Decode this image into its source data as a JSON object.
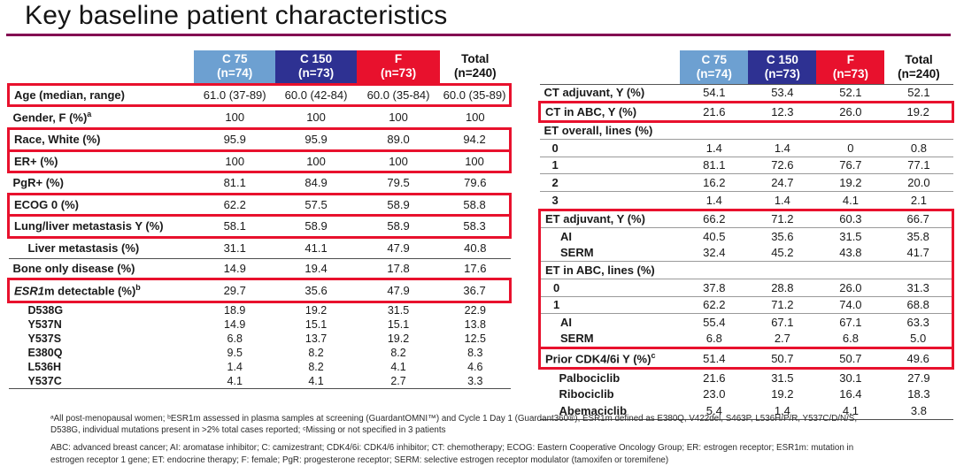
{
  "slide": {
    "title": "Key baseline patient characteristics",
    "accent_color": "#830051",
    "highlight_color": "#e8112d"
  },
  "columns": [
    {
      "label": "C 75",
      "n": "(n=74)",
      "bg": "#6da0d1",
      "fg": "#ffffff"
    },
    {
      "label": "C 150",
      "n": "(n=73)",
      "bg": "#2e3192",
      "fg": "#ffffff"
    },
    {
      "label": "F",
      "n": "(n=73)",
      "bg": "#e8112d",
      "fg": "#ffffff"
    },
    {
      "label": "Total",
      "n": "(n=240)",
      "bg": "",
      "fg": "#111111"
    }
  ],
  "left_table": {
    "rows": [
      {
        "label": "Age (median, range)",
        "box": "solo",
        "values": [
          "61.0 (37-89)",
          "60.0 (42-84)",
          "60.0 (35-84)",
          "60.0 (35-89)"
        ]
      },
      {
        "label": "Gender, F (%)",
        "sup": "a",
        "sep": "light",
        "values": [
          "100",
          "100",
          "100",
          "100"
        ]
      },
      {
        "label": "Race, White (%)",
        "box": "solo",
        "values": [
          "95.9",
          "95.9",
          "89.0",
          "94.2"
        ]
      },
      {
        "label": "ER+ (%)",
        "box": "solo",
        "values": [
          "100",
          "100",
          "100",
          "100"
        ]
      },
      {
        "label": "PgR+ (%)",
        "sep": "light",
        "values": [
          "81.1",
          "84.9",
          "79.5",
          "79.6"
        ]
      },
      {
        "label": "ECOG 0 (%)",
        "box": "solo",
        "values": [
          "62.2",
          "57.5",
          "58.9",
          "58.8"
        ]
      },
      {
        "label": "Lung/liver metastasis Y (%)",
        "box": "solo",
        "values": [
          "58.1",
          "58.9",
          "58.9",
          "58.3"
        ]
      },
      {
        "label": "Liver metastasis (%)",
        "indent": 2,
        "sep": "dark",
        "values": [
          "31.1",
          "41.1",
          "47.9",
          "40.8"
        ]
      },
      {
        "label": "Bone only disease (%)",
        "sep": "light",
        "values": [
          "14.9",
          "19.4",
          "17.8",
          "17.6"
        ]
      },
      {
        "italic_prefix": "ESR1",
        "label": "m detectable (%)",
        "sup": "b",
        "box": "solo",
        "values": [
          "29.7",
          "35.6",
          "47.9",
          "36.7"
        ]
      },
      {
        "label": "D538G",
        "indent": 2,
        "compact": true,
        "values": [
          "18.9",
          "19.2",
          "31.5",
          "22.9"
        ]
      },
      {
        "label": "Y537N",
        "indent": 2,
        "compact": true,
        "values": [
          "14.9",
          "15.1",
          "15.1",
          "13.8"
        ]
      },
      {
        "label": "Y537S",
        "indent": 2,
        "compact": true,
        "values": [
          "6.8",
          "13.7",
          "19.2",
          "12.5"
        ]
      },
      {
        "label": "E380Q",
        "indent": 2,
        "compact": true,
        "values": [
          "9.5",
          "8.2",
          "8.2",
          "8.3"
        ]
      },
      {
        "label": "L536H",
        "indent": 2,
        "compact": true,
        "values": [
          "1.4",
          "8.2",
          "4.1",
          "4.6"
        ]
      },
      {
        "label": "Y537C",
        "indent": 2,
        "compact": true,
        "sep": "dark",
        "values": [
          "4.1",
          "4.1",
          "2.7",
          "3.3"
        ]
      }
    ]
  },
  "right_table": {
    "rows": [
      {
        "label": "CT adjuvant, Y (%)",
        "sep": "light",
        "values": [
          "54.1",
          "53.4",
          "52.1",
          "52.1"
        ]
      },
      {
        "label": "CT in ABC, Y (%)",
        "box": "solo",
        "values": [
          "21.6",
          "12.3",
          "26.0",
          "19.2"
        ]
      },
      {
        "label": "ET overall, lines (%)",
        "section": true,
        "sep": "light",
        "values": [
          "",
          "",
          "",
          ""
        ]
      },
      {
        "label": "0",
        "indent": 1,
        "sep": "light",
        "values": [
          "1.4",
          "1.4",
          "0",
          "0.8"
        ]
      },
      {
        "label": "1",
        "indent": 1,
        "sep": "light",
        "values": [
          "81.1",
          "72.6",
          "76.7",
          "77.1"
        ]
      },
      {
        "label": "2",
        "indent": 1,
        "sep": "light",
        "values": [
          "16.2",
          "24.7",
          "19.2",
          "20.0"
        ]
      },
      {
        "label": "3",
        "indent": 1,
        "values": [
          "1.4",
          "1.4",
          "4.1",
          "2.1"
        ]
      },
      {
        "label": "ET adjuvant, Y (%)",
        "box": "start",
        "sep": "light",
        "values": [
          "66.2",
          "71.2",
          "60.3",
          "66.7"
        ]
      },
      {
        "label": "AI",
        "indent": 2,
        "box": "mid",
        "values": [
          "40.5",
          "35.6",
          "31.5",
          "35.8"
        ]
      },
      {
        "label": "SERM",
        "indent": 2,
        "box": "mid",
        "sep": "light",
        "values": [
          "32.4",
          "45.2",
          "43.8",
          "41.7"
        ]
      },
      {
        "label": "ET in ABC, lines (%)",
        "section": true,
        "box": "mid",
        "sep": "light",
        "values": [
          "",
          "",
          "",
          ""
        ]
      },
      {
        "label": "0",
        "indent": 1,
        "box": "mid",
        "sep": "light",
        "values": [
          "37.8",
          "28.8",
          "26.0",
          "31.3"
        ]
      },
      {
        "label": "1",
        "indent": 1,
        "box": "mid",
        "sep": "light",
        "values": [
          "62.2",
          "71.2",
          "74.0",
          "68.8"
        ]
      },
      {
        "label": "AI",
        "indent": 2,
        "box": "mid",
        "values": [
          "55.4",
          "67.1",
          "67.1",
          "63.3"
        ]
      },
      {
        "label": "SERM",
        "indent": 2,
        "box": "end",
        "values": [
          "6.8",
          "2.7",
          "6.8",
          "5.0"
        ]
      },
      {
        "label": "Prior CDK4/6i Y (%)",
        "sup": "c",
        "box": "solo",
        "values": [
          "51.4",
          "50.7",
          "50.7",
          "49.6"
        ]
      },
      {
        "label": "Palbociclib",
        "indent": 2,
        "values": [
          "21.6",
          "31.5",
          "30.1",
          "27.9"
        ]
      },
      {
        "label": "Ribociclib",
        "indent": 2,
        "values": [
          "23.0",
          "19.2",
          "16.4",
          "18.3"
        ]
      },
      {
        "label": "Abemaciclib",
        "indent": 2,
        "sep": "dark",
        "values": [
          "5.4",
          "1.4",
          "4.1",
          "3.8"
        ]
      }
    ]
  },
  "footnotes": {
    "line1": "ᵃAll post-menopausal women; ᵇESR1m assessed in plasma samples at screening (GuardantOMNI™) and Cycle 1 Day 1 (Guardant360®), ESR1m defined as E380Q, V422del, S463P, L536H/P/R, Y537C/D/N/S, D538G, individual mutations present in >2% total cases reported; ᶜMissing or not specified in 3 patients",
    "line2": "ABC: advanced breast cancer; AI: aromatase inhibitor; C: camizestrant; CDK4/6i: CDK4/6 inhibitor; CT: chemotherapy; ECOG: Eastern Cooperative Oncology Group; ER: estrogen receptor; ESR1m: mutation in estrogen receptor 1 gene; ET: endocrine therapy; F: female; PgR: progesterone receptor; SERM: selective estrogen receptor modulator (tamoxifen or toremifene)"
  }
}
